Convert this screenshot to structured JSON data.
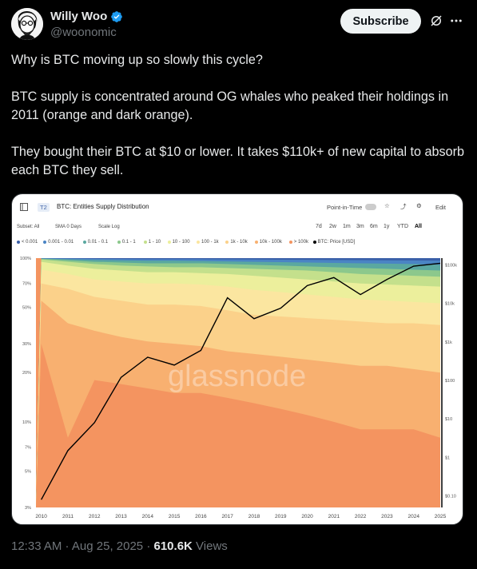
{
  "author": {
    "name": "Willy Woo",
    "handle": "@woonomic"
  },
  "subscribe_label": "Subscribe",
  "icons": {
    "verified": "verified-badge-icon",
    "grok": "grok-icon",
    "more": "more-icon"
  },
  "post_paragraphs": [
    "Why is BTC moving up so slowly this cycle?",
    "BTC supply is concentrated around OG whales who peaked their holdings in 2011 (orange and dark orange).",
    "They bought their BTC at $10 or lower. It takes $110k+ of new capital to absorb each BTC they sell."
  ],
  "meta": {
    "time": "12:33 AM",
    "separator": " · ",
    "date": "Aug 25, 2025",
    "views_count": "610.6K",
    "views_label": " Views"
  },
  "chart_card": {
    "badge": "T2",
    "title": "BTC: Entities Supply Distribution",
    "point_in_time": "Point-in-Time",
    "edit": "Edit",
    "subset": "Subset: All",
    "sma": "SMA 0 Days",
    "scale": "Scale Log",
    "ranges": [
      "7d",
      "2w",
      "1m",
      "3m",
      "6m",
      "1y",
      "YTD",
      "All"
    ],
    "active_range": "All",
    "watermark": "glassnode",
    "legend": [
      {
        "label": "< 0.001",
        "color": "#3a5fa8"
      },
      {
        "label": "0.001 - 0.01",
        "color": "#4a84c4"
      },
      {
        "label": "0.01 - 0.1",
        "color": "#5aa8a0"
      },
      {
        "label": "0.1 - 1",
        "color": "#8cc88c"
      },
      {
        "label": "1 - 10",
        "color": "#c4e08c"
      },
      {
        "label": "10 - 100",
        "color": "#ecef9c"
      },
      {
        "label": "100 - 1k",
        "color": "#fbe6a0"
      },
      {
        "label": "1k - 10k",
        "color": "#fbd18a"
      },
      {
        "label": "10k - 100k",
        "color": "#f8b070"
      },
      {
        "label": "> 100k",
        "color": "#f49460"
      },
      {
        "label": "BTC: Price [USD]",
        "color": "#000000"
      }
    ]
  },
  "chart_data": {
    "type": "area",
    "title": "BTC: Entities Supply Distribution",
    "x": [
      "2010",
      "2011",
      "2012",
      "2013",
      "2014",
      "2015",
      "2016",
      "2017",
      "2018",
      "2019",
      "2020",
      "2021",
      "2022",
      "2023",
      "2024",
      "2025"
    ],
    "y_left_ticks": [
      "100%",
      "70%",
      "50%",
      "30%",
      "20%",
      "10%",
      "7%",
      "5%",
      "3%"
    ],
    "y_right_ticks": [
      "$100k",
      "$10k",
      "$1k",
      "$100",
      "$10",
      "$1",
      "$0.10"
    ],
    "scale": "log",
    "series_bands": [
      {
        "name": "> 100k",
        "upper_pct": [
          30,
          8,
          18,
          17,
          16,
          15,
          15,
          14,
          13,
          12,
          11,
          10,
          9,
          9,
          9,
          8
        ]
      },
      {
        "name": "10k - 100k",
        "upper_pct": [
          55,
          40,
          36,
          33,
          31,
          30,
          29,
          27,
          26,
          25,
          24,
          23,
          22,
          22,
          21,
          20
        ]
      },
      {
        "name": "1k - 10k",
        "upper_pct": [
          70,
          65,
          58,
          55,
          52,
          52,
          51,
          48,
          45,
          44,
          43,
          42,
          41,
          40,
          40,
          39
        ]
      },
      {
        "name": "100 - 1k",
        "upper_pct": [
          85,
          80,
          74,
          72,
          70,
          70,
          69,
          67,
          64,
          62,
          60,
          58,
          56,
          55,
          54,
          53
        ]
      },
      {
        "name": "10 - 100",
        "upper_pct": [
          95,
          90,
          86,
          84,
          82,
          82,
          81,
          80,
          78,
          76,
          74,
          72,
          70,
          69,
          68,
          67
        ]
      },
      {
        "name": "1 - 10",
        "upper_pct": [
          98,
          95,
          92,
          90,
          89,
          88,
          88,
          87,
          86,
          85,
          84,
          82,
          80,
          79,
          78,
          77
        ]
      },
      {
        "name": "0.1 - 1",
        "upper_pct": [
          99,
          97,
          95,
          94,
          93,
          93,
          93,
          92,
          91,
          90,
          89,
          88,
          87,
          86,
          85,
          84
        ]
      },
      {
        "name": "0.01 - 0.1",
        "upper_pct": [
          99.5,
          98.5,
          97.5,
          97,
          96.5,
          96.5,
          96,
          95.5,
          95,
          94.5,
          94,
          93.5,
          93,
          92.5,
          92,
          91
        ]
      },
      {
        "name": "0.001 - 0.01",
        "upper_pct": [
          99.8,
          99.5,
          99,
          98.8,
          98.5,
          98.5,
          98.4,
          98.2,
          98,
          97.8,
          97.6,
          97.4,
          97.2,
          97,
          96.8,
          96.5
        ]
      },
      {
        "name": "< 0.001",
        "upper_pct": [
          100,
          100,
          100,
          100,
          100,
          100,
          100,
          100,
          100,
          100,
          100,
          100,
          100,
          100,
          100,
          100
        ]
      }
    ],
    "price_usd": [
      0.08,
      1.5,
      8,
      120,
      400,
      250,
      600,
      14000,
      4000,
      7500,
      29000,
      47000,
      17000,
      42000,
      93000,
      110000
    ]
  }
}
